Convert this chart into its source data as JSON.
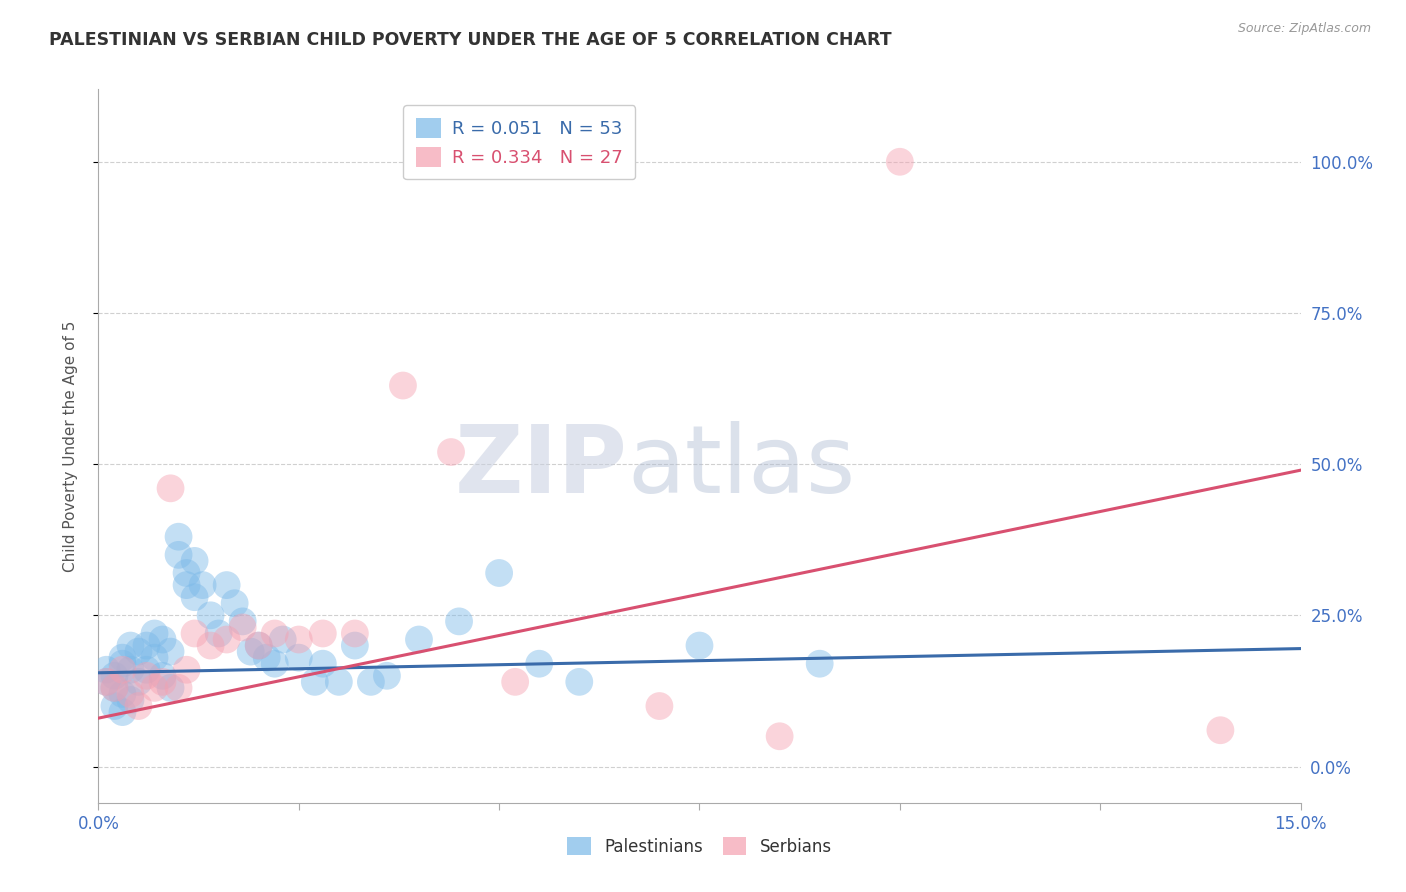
{
  "title": "PALESTINIAN VS SERBIAN CHILD POVERTY UNDER THE AGE OF 5 CORRELATION CHART",
  "source": "Source: ZipAtlas.com",
  "ylabel": "Child Poverty Under the Age of 5",
  "xlim": [
    0.0,
    0.15
  ],
  "ylim": [
    -0.06,
    1.12
  ],
  "yticks": [
    0.0,
    0.25,
    0.5,
    0.75,
    1.0
  ],
  "ytick_labels": [
    "0.0%",
    "25.0%",
    "50.0%",
    "75.0%",
    "100.0%"
  ],
  "xticks": [
    0.0,
    0.025,
    0.05,
    0.075,
    0.1,
    0.125,
    0.15
  ],
  "xtick_labels": [
    "0.0%",
    "",
    "",
    "",
    "",
    "",
    "15.0%"
  ],
  "palestinian_R": 0.051,
  "palestinian_N": 53,
  "serbian_R": 0.334,
  "serbian_N": 27,
  "blue_color": "#7ab8e8",
  "pink_color": "#f5a0b0",
  "blue_line_color": "#3a6baa",
  "pink_line_color": "#d85070",
  "watermark_zip_color": "#c8cfe0",
  "watermark_atlas_color": "#b0bdd4",
  "background_color": "#ffffff",
  "grid_color": "#d0d0d0",
  "palestinians_x": [
    0.001,
    0.001,
    0.002,
    0.002,
    0.002,
    0.003,
    0.003,
    0.003,
    0.003,
    0.004,
    0.004,
    0.004,
    0.005,
    0.005,
    0.006,
    0.006,
    0.007,
    0.007,
    0.008,
    0.008,
    0.009,
    0.009,
    0.01,
    0.01,
    0.011,
    0.011,
    0.012,
    0.012,
    0.013,
    0.014,
    0.015,
    0.016,
    0.017,
    0.018,
    0.019,
    0.02,
    0.021,
    0.022,
    0.023,
    0.025,
    0.027,
    0.028,
    0.03,
    0.032,
    0.034,
    0.036,
    0.04,
    0.045,
    0.05,
    0.055,
    0.06,
    0.075,
    0.09
  ],
  "palestinians_y": [
    0.14,
    0.16,
    0.15,
    0.13,
    0.1,
    0.17,
    0.18,
    0.12,
    0.09,
    0.16,
    0.2,
    0.11,
    0.19,
    0.14,
    0.2,
    0.16,
    0.22,
    0.18,
    0.21,
    0.15,
    0.19,
    0.13,
    0.35,
    0.38,
    0.32,
    0.3,
    0.34,
    0.28,
    0.3,
    0.25,
    0.22,
    0.3,
    0.27,
    0.24,
    0.19,
    0.2,
    0.18,
    0.17,
    0.21,
    0.18,
    0.14,
    0.17,
    0.14,
    0.2,
    0.14,
    0.15,
    0.21,
    0.24,
    0.32,
    0.17,
    0.14,
    0.2,
    0.17
  ],
  "serbians_x": [
    0.001,
    0.002,
    0.003,
    0.004,
    0.005,
    0.006,
    0.007,
    0.008,
    0.009,
    0.01,
    0.011,
    0.012,
    0.014,
    0.016,
    0.018,
    0.02,
    0.022,
    0.025,
    0.028,
    0.032,
    0.038,
    0.044,
    0.052,
    0.07,
    0.085,
    0.1,
    0.14
  ],
  "serbians_y": [
    0.14,
    0.13,
    0.16,
    0.12,
    0.1,
    0.15,
    0.13,
    0.14,
    0.46,
    0.13,
    0.16,
    0.22,
    0.2,
    0.21,
    0.23,
    0.2,
    0.22,
    0.21,
    0.22,
    0.22,
    0.63,
    0.52,
    0.14,
    0.1,
    0.05,
    1.0,
    0.06
  ],
  "blue_trend_x": [
    0.0,
    0.15
  ],
  "blue_trend_y": [
    0.155,
    0.195
  ],
  "pink_trend_x": [
    0.0,
    0.15
  ],
  "pink_trend_y": [
    0.08,
    0.49
  ]
}
